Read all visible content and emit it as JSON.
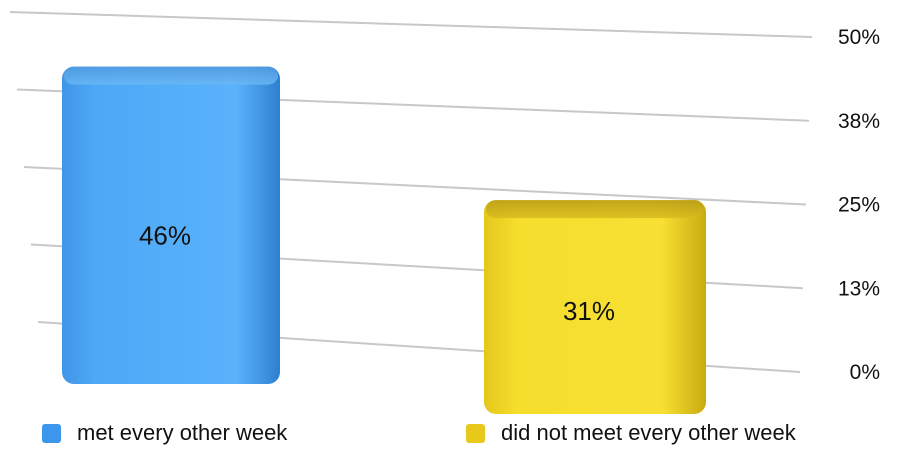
{
  "chart_data": {
    "type": "bar",
    "categories": [
      "met every other week",
      "did not meet every other week"
    ],
    "values": [
      46,
      31
    ],
    "data_labels": [
      "46%",
      "31%"
    ],
    "y_ticks": [
      "0%",
      "13%",
      "25%",
      "38%",
      "50%"
    ],
    "ylim": [
      0,
      50
    ],
    "title": "",
    "xlabel": "",
    "ylabel": "",
    "grid": true,
    "legend_position": "bottom",
    "colors": {
      "met every other week": "#4aa3f2",
      "did not meet every other week": "#f0d520"
    }
  },
  "legend": [
    {
      "label": "met every other week",
      "color": "#3c97ec"
    },
    {
      "label": "did not meet every other week",
      "color": "#e8c81a"
    }
  ]
}
